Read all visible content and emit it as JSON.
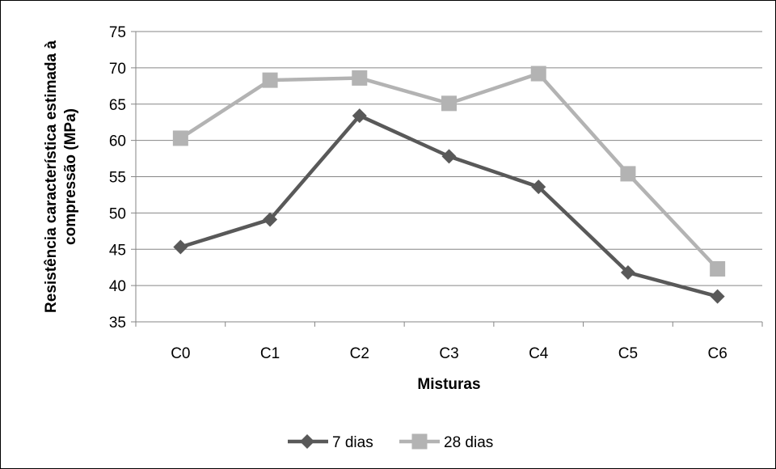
{
  "chart_data": {
    "type": "line",
    "title": "",
    "xlabel": "Misturas",
    "ylabel_lines": [
      "Resistência característica estimada à",
      "compressão (MPa)"
    ],
    "categories": [
      "C0",
      "C1",
      "C2",
      "C3",
      "C4",
      "C5",
      "C6"
    ],
    "ylim": [
      35,
      75
    ],
    "yticks": [
      35,
      40,
      45,
      50,
      55,
      60,
      65,
      70,
      75
    ],
    "grid": true,
    "legend_position": "bottom",
    "series": [
      {
        "name": "7 dias",
        "values": [
          45.3,
          49.1,
          63.4,
          57.8,
          53.6,
          41.8,
          38.5
        ],
        "color": "#595959",
        "marker": "diamond"
      },
      {
        "name": "28 dias",
        "values": [
          60.3,
          68.3,
          68.6,
          65.1,
          69.2,
          55.4,
          42.3
        ],
        "color": "#b3b3b3",
        "marker": "square"
      }
    ]
  }
}
